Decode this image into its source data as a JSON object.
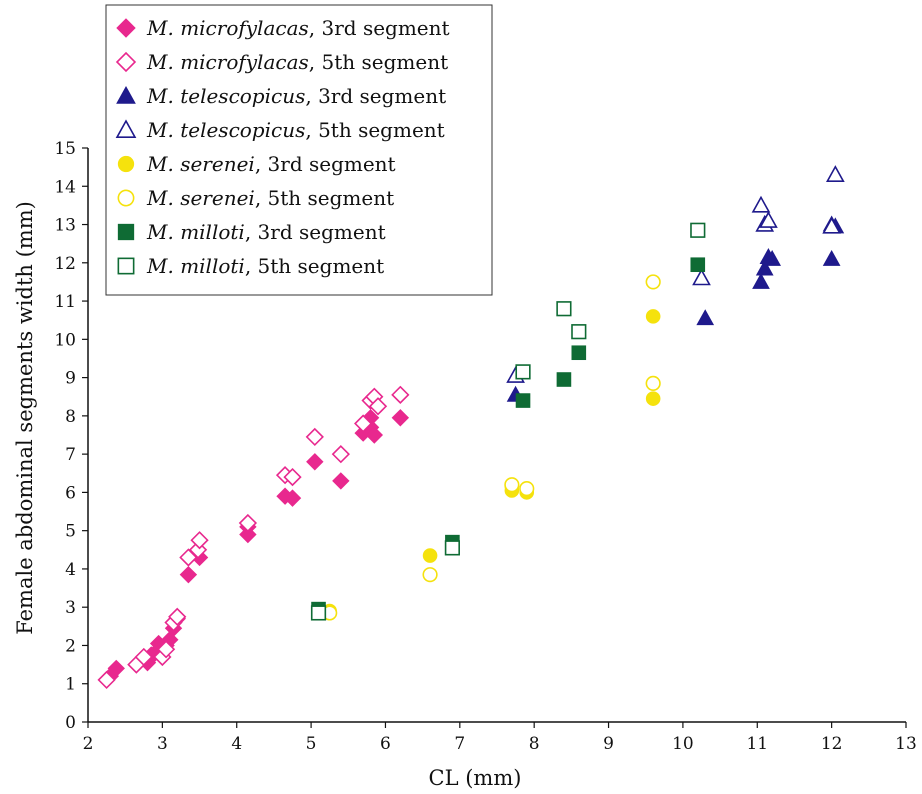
{
  "chart_data": {
    "type": "scatter",
    "xlabel": "CL (mm)",
    "ylabel": "Female abdominal segments width (mm)",
    "xlim": [
      2,
      13
    ],
    "ylim": [
      0,
      15
    ],
    "xticks": [
      2,
      3,
      4,
      5,
      6,
      7,
      8,
      9,
      10,
      11,
      12,
      13
    ],
    "yticks": [
      0,
      1,
      2,
      3,
      4,
      5,
      6,
      7,
      8,
      9,
      10,
      11,
      12,
      13,
      14,
      15
    ],
    "grid": false,
    "legend_position": "top-left",
    "series": [
      {
        "name": "M. microfylacas, 3rd segment",
        "species": "M. microfylacas",
        "suffix": ", 3rd segment",
        "marker": "diamond",
        "filled": true,
        "color": "#e8288e",
        "points": [
          [
            2.3,
            1.2
          ],
          [
            2.38,
            1.4
          ],
          [
            2.7,
            1.6
          ],
          [
            2.8,
            1.55
          ],
          [
            2.85,
            1.75
          ],
          [
            2.9,
            1.8
          ],
          [
            2.95,
            2.05
          ],
          [
            3.05,
            2.0
          ],
          [
            3.1,
            2.15
          ],
          [
            3.15,
            2.45
          ],
          [
            3.2,
            2.7
          ],
          [
            3.35,
            3.85
          ],
          [
            3.5,
            4.3
          ],
          [
            4.15,
            4.9
          ],
          [
            4.15,
            5.1
          ],
          [
            4.65,
            5.9
          ],
          [
            4.75,
            5.85
          ],
          [
            5.05,
            6.8
          ],
          [
            5.4,
            6.3
          ],
          [
            5.7,
            7.55
          ],
          [
            5.8,
            7.7
          ],
          [
            5.85,
            7.5
          ],
          [
            5.8,
            7.95
          ],
          [
            6.2,
            7.95
          ]
        ]
      },
      {
        "name": "M. microfylacas, 5th segment",
        "species": "M. microfylacas",
        "suffix": ", 5th segment",
        "marker": "diamond",
        "filled": false,
        "color": "#e8288e",
        "points": [
          [
            2.25,
            1.1
          ],
          [
            2.65,
            1.5
          ],
          [
            2.75,
            1.7
          ],
          [
            3.0,
            1.7
          ],
          [
            3.05,
            1.9
          ],
          [
            3.15,
            2.6
          ],
          [
            3.2,
            2.75
          ],
          [
            3.35,
            4.3
          ],
          [
            3.48,
            4.5
          ],
          [
            3.5,
            4.75
          ],
          [
            4.15,
            5.2
          ],
          [
            4.65,
            6.45
          ],
          [
            4.75,
            6.4
          ],
          [
            5.05,
            7.45
          ],
          [
            5.4,
            7.0
          ],
          [
            5.7,
            7.8
          ],
          [
            5.8,
            8.4
          ],
          [
            5.85,
            8.5
          ],
          [
            5.9,
            8.25
          ],
          [
            6.2,
            8.55
          ]
        ]
      },
      {
        "name": "M. telescopicus, 3rd segment",
        "species": "M. telescopicus",
        "suffix": ", 3rd segment",
        "marker": "triangle",
        "filled": true,
        "color": "#1f1a8c",
        "points": [
          [
            7.75,
            8.55
          ],
          [
            10.3,
            10.55
          ],
          [
            11.05,
            11.5
          ],
          [
            11.1,
            11.85
          ],
          [
            11.15,
            12.15
          ],
          [
            11.2,
            12.1
          ],
          [
            12.0,
            12.1
          ],
          [
            12.0,
            13.0
          ],
          [
            12.05,
            12.95
          ]
        ]
      },
      {
        "name": "M. telescopicus, 5th segment",
        "species": "M. telescopicus",
        "suffix": ", 5th segment",
        "marker": "triangle",
        "filled": false,
        "color": "#1f1a8c",
        "points": [
          [
            7.75,
            9.05
          ],
          [
            10.25,
            11.6
          ],
          [
            11.05,
            13.5
          ],
          [
            11.1,
            13.0
          ],
          [
            11.15,
            13.1
          ],
          [
            12.0,
            12.95
          ],
          [
            12.05,
            14.3
          ]
        ]
      },
      {
        "name": "M. serenei, 3rd segment",
        "species": "M. serenei",
        "suffix": ", 3rd segment",
        "marker": "circle",
        "filled": true,
        "color": "#f5e20d",
        "points": [
          [
            5.25,
            2.9
          ],
          [
            6.6,
            4.35
          ],
          [
            7.7,
            6.05
          ],
          [
            7.7,
            6.15
          ],
          [
            7.9,
            6.0
          ],
          [
            9.6,
            8.45
          ],
          [
            9.6,
            10.6
          ]
        ]
      },
      {
        "name": "M. serenei, 5th segment",
        "species": "M. serenei",
        "suffix": ", 5th segment",
        "marker": "circle",
        "filled": false,
        "color": "#f5e20d",
        "points": [
          [
            5.25,
            2.85
          ],
          [
            6.6,
            3.85
          ],
          [
            7.7,
            6.2
          ],
          [
            7.9,
            6.1
          ],
          [
            9.6,
            8.85
          ],
          [
            9.6,
            11.5
          ]
        ]
      },
      {
        "name": "M. milloti, 3rd segment",
        "species": "M. milloti",
        "suffix": ", 3rd segment",
        "marker": "square",
        "filled": true,
        "color": "#0f6b34",
        "points": [
          [
            5.1,
            2.95
          ],
          [
            6.9,
            4.7
          ],
          [
            7.85,
            8.4
          ],
          [
            8.4,
            8.95
          ],
          [
            8.6,
            9.65
          ],
          [
            10.2,
            11.95
          ]
        ]
      },
      {
        "name": "M. milloti, 5th segment",
        "species": "M. milloti",
        "suffix": ", 5th segment",
        "marker": "square",
        "filled": false,
        "color": "#0f6b34",
        "points": [
          [
            5.1,
            2.85
          ],
          [
            6.9,
            4.55
          ],
          [
            7.85,
            9.15
          ],
          [
            8.4,
            10.8
          ],
          [
            8.6,
            10.2
          ],
          [
            10.2,
            12.85
          ]
        ]
      }
    ]
  }
}
